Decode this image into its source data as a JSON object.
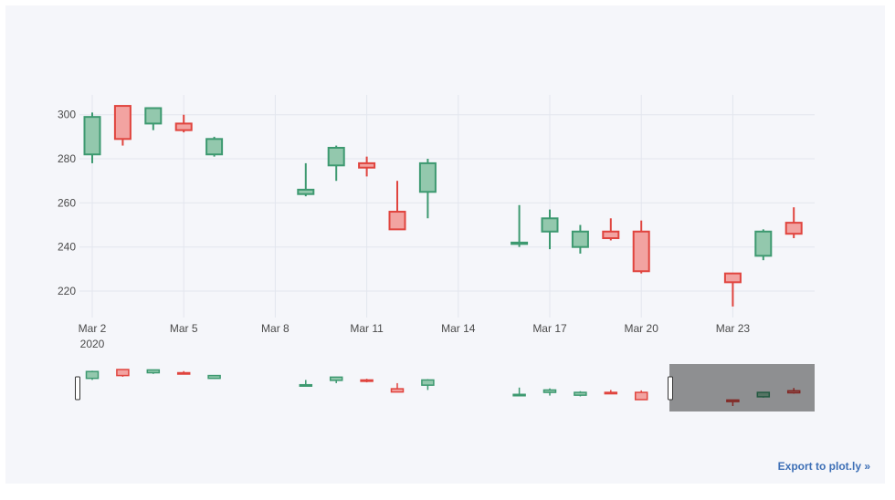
{
  "chart_data": {
    "type": "candlestick",
    "title": "",
    "xlabel": "",
    "ylabel": "",
    "ylim": [
      208,
      309
    ],
    "x_tick_labels": [
      "Mar 2",
      "Mar 5",
      "Mar 8",
      "Mar 11",
      "Mar 14",
      "Mar 17",
      "Mar 20",
      "Mar 23"
    ],
    "x_year_label": "2020",
    "y_ticks": [
      220,
      240,
      260,
      280,
      300
    ],
    "grid": true,
    "increasing_color": "#3d9970",
    "increasing_fill": "#93c8ad",
    "decreasing_color": "#e0443e",
    "decreasing_fill": "#f2a3a1",
    "candles": [
      {
        "date": "2020-03-02",
        "open": 282,
        "high": 301,
        "low": 278,
        "close": 299
      },
      {
        "date": "2020-03-03",
        "open": 304,
        "high": 304,
        "low": 286,
        "close": 289
      },
      {
        "date": "2020-03-04",
        "open": 296,
        "high": 303,
        "low": 293,
        "close": 303
      },
      {
        "date": "2020-03-05",
        "open": 296,
        "high": 300,
        "low": 292,
        "close": 293
      },
      {
        "date": "2020-03-06",
        "open": 282,
        "high": 290,
        "low": 281,
        "close": 289
      },
      {
        "date": "2020-03-09",
        "open": 264,
        "high": 278,
        "low": 263,
        "close": 266
      },
      {
        "date": "2020-03-10",
        "open": 277,
        "high": 286,
        "low": 270,
        "close": 285
      },
      {
        "date": "2020-03-11",
        "open": 278,
        "high": 281,
        "low": 272,
        "close": 276
      },
      {
        "date": "2020-03-12",
        "open": 256,
        "high": 270,
        "low": 248,
        "close": 248
      },
      {
        "date": "2020-03-13",
        "open": 265,
        "high": 280,
        "low": 253,
        "close": 278
      },
      {
        "date": "2020-03-16",
        "open": 242,
        "high": 259,
        "low": 240,
        "close": 242
      },
      {
        "date": "2020-03-17",
        "open": 247,
        "high": 257,
        "low": 239,
        "close": 253
      },
      {
        "date": "2020-03-18",
        "open": 240,
        "high": 250,
        "low": 237,
        "close": 247
      },
      {
        "date": "2020-03-19",
        "open": 247,
        "high": 253,
        "low": 243,
        "close": 244
      },
      {
        "date": "2020-03-20",
        "open": 247,
        "high": 252,
        "low": 228,
        "close": 229
      },
      {
        "date": "2020-03-23",
        "open": 228,
        "high": 228,
        "low": 213,
        "close": 224
      },
      {
        "date": "2020-03-24",
        "open": 236,
        "high": 248,
        "low": 234,
        "close": 247
      },
      {
        "date": "2020-03-25",
        "open": 251,
        "high": 258,
        "low": 244,
        "close": 246
      }
    ],
    "rangeslider": true
  },
  "footer": {
    "export_label": "Export to plot.ly »"
  }
}
